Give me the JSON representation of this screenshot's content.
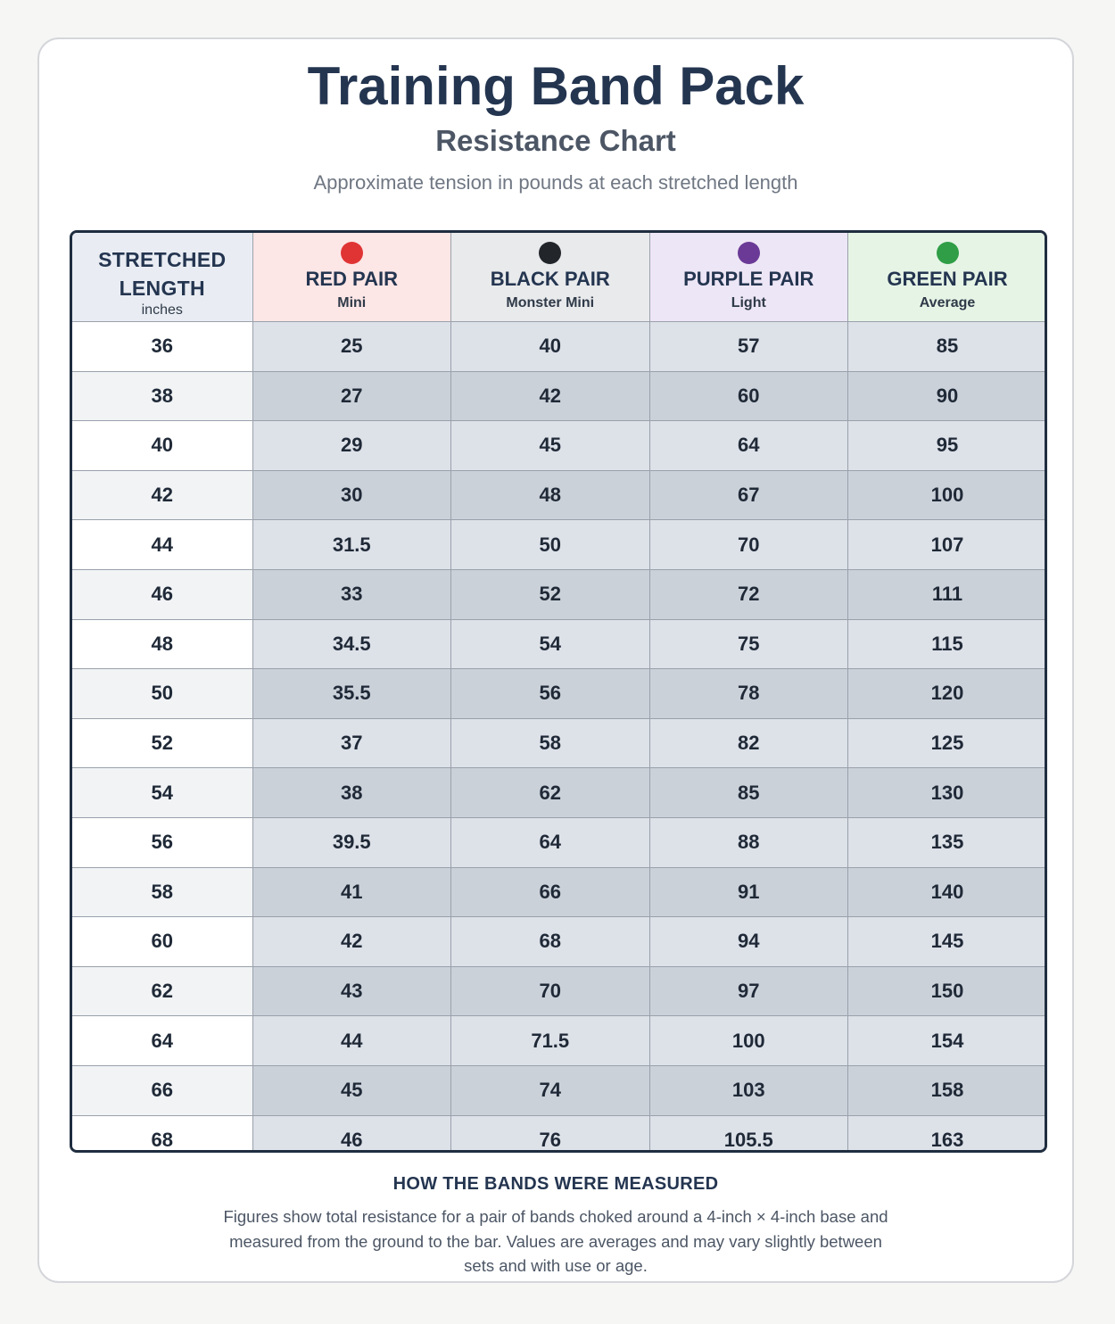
{
  "header": {
    "title": "Training Band Pack",
    "subtitle": "Resistance Chart",
    "tagline": "Approximate tension in pounds at each stretched length"
  },
  "table": {
    "length_header": {
      "label": "STRETCHED LENGTH",
      "unit": "inches"
    },
    "bands": [
      {
        "name": "RED PAIR",
        "level": "Mini",
        "color": "#e03434",
        "tint": "#fde6e6"
      },
      {
        "name": "BLACK PAIR",
        "level": "Monster Mini",
        "color": "#22252a",
        "tint": "#e9eaec"
      },
      {
        "name": "PURPLE PAIR",
        "level": "Light",
        "color": "#6a3a96",
        "tint": "#ede6f6"
      },
      {
        "name": "GREEN PAIR",
        "level": "Average",
        "color": "#2f9e46",
        "tint": "#e6f4e6"
      }
    ],
    "rows": [
      {
        "length": "36",
        "values": [
          "25",
          "40",
          "57",
          "85"
        ]
      },
      {
        "length": "38",
        "values": [
          "27",
          "42",
          "60",
          "90"
        ]
      },
      {
        "length": "40",
        "values": [
          "29",
          "45",
          "64",
          "95"
        ]
      },
      {
        "length": "42",
        "values": [
          "30",
          "48",
          "67",
          "100"
        ]
      },
      {
        "length": "44",
        "values": [
          "31.5",
          "50",
          "70",
          "107"
        ]
      },
      {
        "length": "46",
        "values": [
          "33",
          "52",
          "72",
          "111"
        ]
      },
      {
        "length": "48",
        "values": [
          "34.5",
          "54",
          "75",
          "115"
        ]
      },
      {
        "length": "50",
        "values": [
          "35.5",
          "56",
          "78",
          "120"
        ]
      },
      {
        "length": "52",
        "values": [
          "37",
          "58",
          "82",
          "125"
        ]
      },
      {
        "length": "54",
        "values": [
          "38",
          "62",
          "85",
          "130"
        ]
      },
      {
        "length": "56",
        "values": [
          "39.5",
          "64",
          "88",
          "135"
        ]
      },
      {
        "length": "58",
        "values": [
          "41",
          "66",
          "91",
          "140"
        ]
      },
      {
        "length": "60",
        "values": [
          "42",
          "68",
          "94",
          "145"
        ]
      },
      {
        "length": "62",
        "values": [
          "43",
          "70",
          "97",
          "150"
        ]
      },
      {
        "length": "64",
        "values": [
          "44",
          "71.5",
          "100",
          "154"
        ]
      },
      {
        "length": "66",
        "values": [
          "45",
          "74",
          "103",
          "158"
        ]
      },
      {
        "length": "68",
        "values": [
          "46",
          "76",
          "105.5",
          "163"
        ]
      }
    ]
  },
  "note": {
    "title": "HOW THE BANDS WERE MEASURED",
    "body": "Figures show total resistance for a pair of bands choked around a 4-inch × 4-inch base and measured from the ground to the bar. Values are averages and may vary slightly between sets and with use or age."
  }
}
